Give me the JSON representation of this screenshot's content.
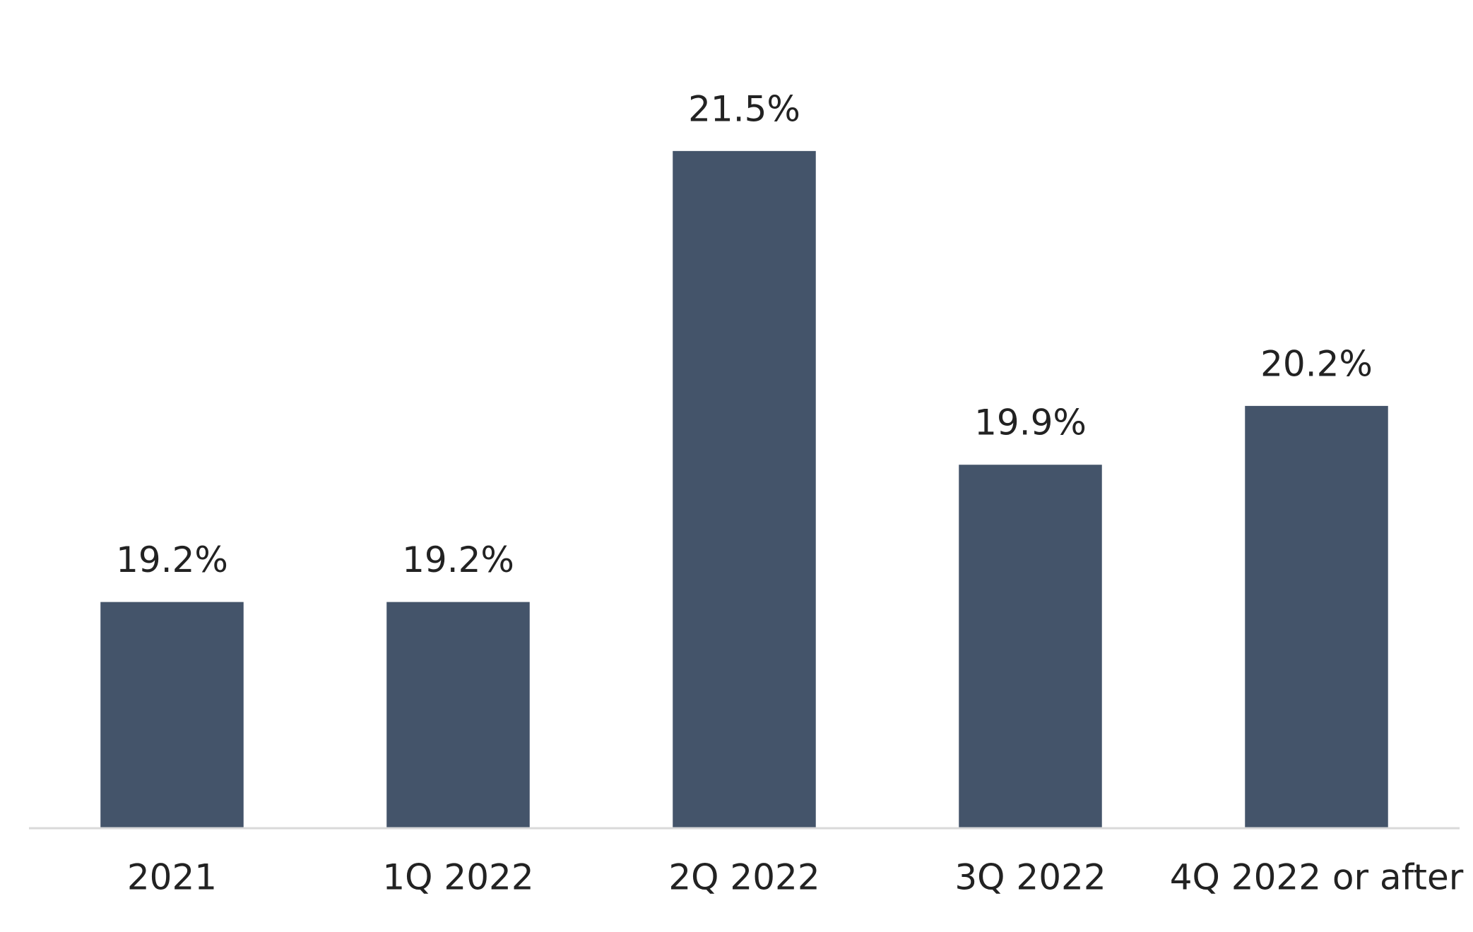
{
  "chart_data": {
    "type": "bar",
    "categories": [
      "2021",
      "1Q 2022",
      "2Q 2022",
      "3Q 2022",
      "4Q 2022 or after"
    ],
    "values": [
      19.2,
      19.2,
      21.5,
      19.9,
      20.2
    ],
    "value_labels": [
      "19.2%",
      "19.2%",
      "21.5%",
      "19.9%",
      "20.2%"
    ],
    "color": "#44546a",
    "ylim": [
      18.05,
      22
    ]
  }
}
